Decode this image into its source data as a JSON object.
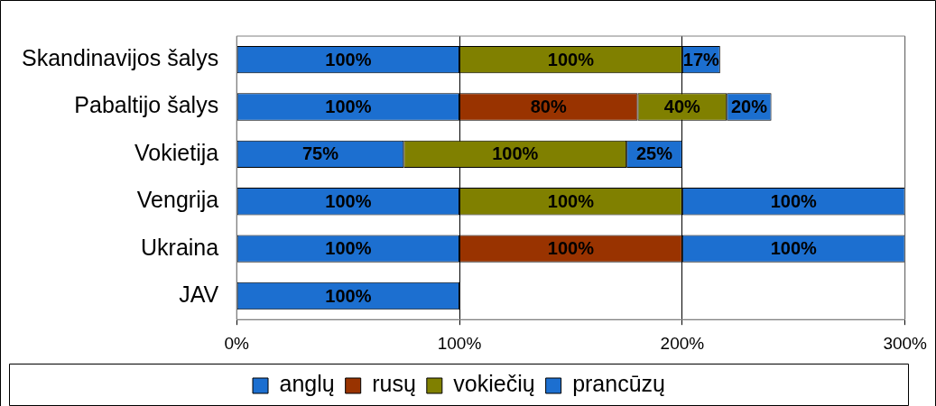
{
  "chart_data": {
    "type": "bar",
    "orientation": "horizontal",
    "stacked": true,
    "categories": [
      "Skandinavijos šalys",
      "Pabaltijo šalys",
      "Vokietija",
      "Vengrija",
      "Ukraina",
      "JAV"
    ],
    "series": [
      {
        "name": "anglų",
        "color": "#1c6fd0",
        "values": [
          100,
          100,
          75,
          100,
          100,
          100
        ],
        "value_labels": [
          "100%",
          "100%",
          "75%",
          "100%",
          "100%",
          "100%"
        ]
      },
      {
        "name": "rusų",
        "color": "#993300",
        "values": [
          null,
          80,
          null,
          null,
          100,
          null
        ],
        "value_labels": [
          null,
          "80%",
          null,
          null,
          "100%",
          null
        ]
      },
      {
        "name": "vokiečių",
        "color": "#808000",
        "values": [
          100,
          40,
          100,
          100,
          null,
          null
        ],
        "value_labels": [
          "100%",
          "40%",
          "100%",
          "100%",
          null,
          null
        ]
      },
      {
        "name": "prancūzų",
        "color": "#1c6fd0",
        "values": [
          17,
          20,
          25,
          100,
          100,
          null
        ],
        "value_labels": [
          "17%",
          "20%",
          "25%",
          "100%",
          "100%",
          null
        ]
      }
    ],
    "xlim": [
      0,
      300
    ],
    "xticks": [
      {
        "value": 0,
        "label": "0%"
      },
      {
        "value": 100,
        "label": "100%"
      },
      {
        "value": 200,
        "label": "200%"
      },
      {
        "value": 300,
        "label": "300%"
      }
    ],
    "grid": "x",
    "legend": "bottom"
  }
}
